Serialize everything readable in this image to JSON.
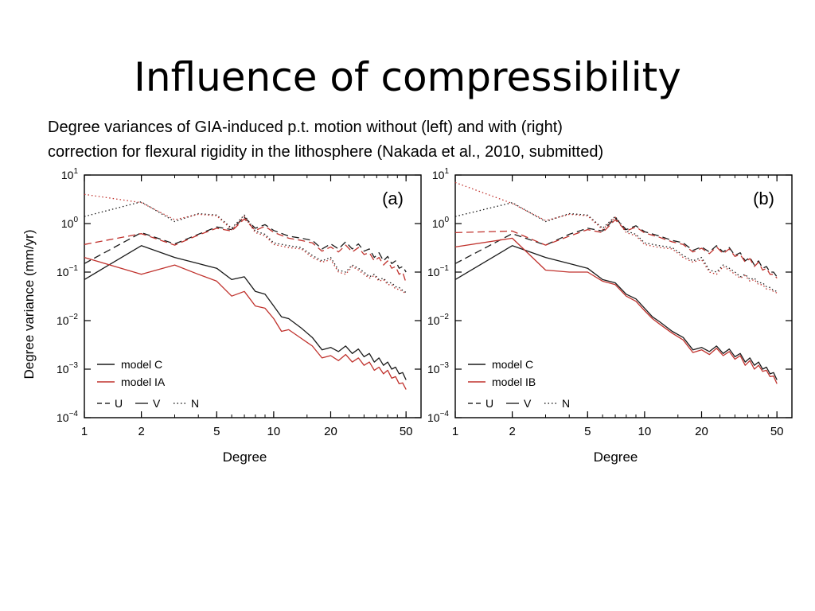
{
  "slide": {
    "title": "Influence of compressibility",
    "caption_line1": "Degree variances of GIA-induced p.t. motion without (left) and  with (right)",
    "caption_line2": "correction for flexural rigidity in the lithosphere (Nakada et al., 2010, submitted)"
  },
  "chart_data": [
    {
      "type": "line",
      "panel_label": "(a)",
      "xlabel": "Degree",
      "ylabel": "Degree variance (mm/yr)",
      "x_scale": "log",
      "y_scale": "log",
      "xlim": [
        1,
        60
      ],
      "ylim": [
        0.0001,
        10
      ],
      "x_ticks": [
        1,
        2,
        5,
        10,
        20,
        50
      ],
      "x_tick_labels": [
        "1",
        "2",
        "5",
        "10",
        "20",
        "50"
      ],
      "y_ticks": [
        10,
        1,
        0.1,
        0.01,
        0.001,
        0.0001
      ],
      "y_tick_labels": [
        {
          "base": "10",
          "exp": "1"
        },
        {
          "base": "10",
          "exp": "0"
        },
        {
          "base": "10",
          "exp": "−1"
        },
        {
          "base": "10",
          "exp": "−2"
        },
        {
          "base": "10",
          "exp": "−3"
        },
        {
          "base": "10",
          "exp": "−4"
        }
      ],
      "legend": {
        "position": "bottom-left",
        "models": [
          {
            "label": "model C",
            "color": "#1a1a1a"
          },
          {
            "label": "model IA",
            "color": "#c0322d"
          }
        ],
        "components": [
          {
            "label": "U",
            "dash": "dashed"
          },
          {
            "label": "V",
            "dash": "solid"
          },
          {
            "label": "N",
            "dash": "dotted"
          }
        ]
      },
      "series": [
        {
          "model": "model C",
          "component": "U",
          "color": "#1a1a1a",
          "dash": "dashed",
          "x": [
            1,
            2,
            3,
            4,
            5,
            6,
            7,
            8,
            9,
            10,
            12,
            14,
            16,
            18,
            20,
            22,
            24,
            26,
            28,
            30,
            32,
            34,
            36,
            38,
            40,
            42,
            44,
            46,
            48,
            50
          ],
          "y": [
            0.15,
            0.65,
            0.38,
            0.6,
            0.85,
            0.75,
            1.35,
            0.8,
            0.95,
            0.72,
            0.55,
            0.5,
            0.45,
            0.3,
            0.38,
            0.3,
            0.42,
            0.3,
            0.38,
            0.27,
            0.3,
            0.2,
            0.25,
            0.17,
            0.21,
            0.15,
            0.17,
            0.12,
            0.13,
            0.1
          ]
        },
        {
          "model": "model IA",
          "component": "U",
          "color": "#c0322d",
          "dash": "dashed",
          "x": [
            1,
            2,
            3,
            4,
            5,
            6,
            7,
            8,
            9,
            10,
            12,
            14,
            16,
            18,
            20,
            22,
            24,
            26,
            28,
            30,
            32,
            34,
            36,
            38,
            40,
            42,
            44,
            46,
            48,
            50
          ],
          "y": [
            0.37,
            0.62,
            0.36,
            0.58,
            0.8,
            0.7,
            1.25,
            0.72,
            0.88,
            0.66,
            0.5,
            0.45,
            0.4,
            0.27,
            0.33,
            0.26,
            0.36,
            0.26,
            0.32,
            0.23,
            0.25,
            0.17,
            0.2,
            0.14,
            0.17,
            0.12,
            0.13,
            0.09,
            0.1,
            0.06
          ]
        },
        {
          "model": "model C",
          "component": "V",
          "color": "#1a1a1a",
          "dash": "solid",
          "x": [
            1,
            2,
            3,
            4,
            5,
            6,
            7,
            8,
            9,
            10,
            11,
            12,
            14,
            16,
            18,
            20,
            22,
            24,
            26,
            28,
            30,
            32,
            34,
            36,
            38,
            40,
            42,
            44,
            46,
            48,
            50
          ],
          "y": [
            0.07,
            0.35,
            0.2,
            0.15,
            0.12,
            0.07,
            0.08,
            0.04,
            0.035,
            0.02,
            0.012,
            0.011,
            0.007,
            0.0045,
            0.0025,
            0.0028,
            0.0023,
            0.003,
            0.0021,
            0.0026,
            0.0018,
            0.0021,
            0.0014,
            0.0017,
            0.0012,
            0.0014,
            0.001,
            0.0011,
            0.0008,
            0.00085,
            0.0006
          ]
        },
        {
          "model": "model IA",
          "component": "V",
          "color": "#c0322d",
          "dash": "solid",
          "x": [
            1,
            2,
            3,
            4,
            5,
            6,
            7,
            8,
            9,
            10,
            11,
            12,
            14,
            16,
            18,
            20,
            22,
            24,
            26,
            28,
            30,
            32,
            34,
            36,
            38,
            40,
            42,
            44,
            46,
            48,
            50
          ],
          "y": [
            0.2,
            0.09,
            0.14,
            0.09,
            0.065,
            0.032,
            0.04,
            0.02,
            0.018,
            0.011,
            0.006,
            0.0065,
            0.0043,
            0.003,
            0.0017,
            0.0019,
            0.0015,
            0.002,
            0.0014,
            0.0017,
            0.0012,
            0.0014,
            0.00095,
            0.0011,
            0.0008,
            0.00095,
            0.00065,
            0.0007,
            0.0005,
            0.00052,
            0.00038
          ]
        },
        {
          "model": "model C",
          "component": "N",
          "color": "#1a1a1a",
          "dash": "dotted",
          "x": [
            1,
            2,
            3,
            4,
            5,
            6,
            7,
            8,
            9,
            10,
            12,
            14,
            16,
            18,
            20,
            22,
            24,
            26,
            28,
            30,
            32,
            34,
            36,
            38,
            40,
            42,
            44,
            46,
            48,
            50
          ],
          "y": [
            1.4,
            2.8,
            1.1,
            1.6,
            1.5,
            0.8,
            1.5,
            0.7,
            0.6,
            0.4,
            0.35,
            0.32,
            0.22,
            0.17,
            0.2,
            0.11,
            0.1,
            0.14,
            0.12,
            0.1,
            0.08,
            0.09,
            0.07,
            0.075,
            0.06,
            0.06,
            0.05,
            0.048,
            0.042,
            0.038
          ]
        },
        {
          "model": "model IA",
          "component": "N",
          "color": "#c0322d",
          "dash": "dotted",
          "x": [
            1,
            2,
            3,
            4,
            5,
            6,
            7,
            8,
            9,
            10,
            12,
            14,
            16,
            18,
            20,
            22,
            24,
            26,
            28,
            30,
            32,
            34,
            36,
            38,
            40,
            42,
            44,
            46,
            48,
            50
          ],
          "y": [
            4.0,
            2.7,
            1.2,
            1.55,
            1.45,
            0.75,
            1.4,
            0.65,
            0.56,
            0.37,
            0.32,
            0.3,
            0.2,
            0.16,
            0.18,
            0.1,
            0.09,
            0.13,
            0.11,
            0.09,
            0.075,
            0.085,
            0.065,
            0.07,
            0.055,
            0.055,
            0.045,
            0.044,
            0.04,
            0.036
          ]
        }
      ]
    },
    {
      "type": "line",
      "panel_label": "(b)",
      "xlabel": "Degree",
      "ylabel": "",
      "x_scale": "log",
      "y_scale": "log",
      "xlim": [
        1,
        60
      ],
      "ylim": [
        0.0001,
        10
      ],
      "x_ticks": [
        1,
        2,
        5,
        10,
        20,
        50
      ],
      "x_tick_labels": [
        "1",
        "2",
        "5",
        "10",
        "20",
        "50"
      ],
      "y_ticks": [
        10,
        1,
        0.1,
        0.01,
        0.001,
        0.0001
      ],
      "y_tick_labels": [
        {
          "base": "10",
          "exp": "1"
        },
        {
          "base": "10",
          "exp": "0"
        },
        {
          "base": "10",
          "exp": "−1"
        },
        {
          "base": "10",
          "exp": "−2"
        },
        {
          "base": "10",
          "exp": "−3"
        },
        {
          "base": "10",
          "exp": "−4"
        }
      ],
      "legend": {
        "position": "bottom-left",
        "models": [
          {
            "label": "model C",
            "color": "#1a1a1a"
          },
          {
            "label": "model IB",
            "color": "#c0322d"
          }
        ],
        "components": [
          {
            "label": "U",
            "dash": "dashed"
          },
          {
            "label": "V",
            "dash": "solid"
          },
          {
            "label": "N",
            "dash": "dotted"
          }
        ]
      },
      "series": [
        {
          "model": "model C",
          "component": "U",
          "color": "#1a1a1a",
          "dash": "dashed",
          "x": [
            1,
            2,
            3,
            4,
            5,
            6,
            7,
            8,
            9,
            10,
            12,
            14,
            16,
            18,
            20,
            22,
            24,
            26,
            28,
            30,
            32,
            34,
            36,
            38,
            40,
            42,
            44,
            46,
            48,
            50
          ],
          "y": [
            0.15,
            0.62,
            0.36,
            0.6,
            0.8,
            0.7,
            1.3,
            0.75,
            0.9,
            0.68,
            0.55,
            0.45,
            0.4,
            0.28,
            0.33,
            0.26,
            0.35,
            0.26,
            0.32,
            0.22,
            0.25,
            0.17,
            0.2,
            0.14,
            0.17,
            0.12,
            0.13,
            0.1,
            0.1,
            0.08
          ]
        },
        {
          "model": "model IB",
          "component": "U",
          "color": "#c0322d",
          "dash": "dashed",
          "x": [
            1,
            2,
            3,
            4,
            5,
            6,
            7,
            8,
            9,
            10,
            12,
            14,
            16,
            18,
            20,
            22,
            24,
            26,
            28,
            30,
            32,
            34,
            36,
            38,
            40,
            42,
            44,
            46,
            48,
            50
          ],
          "y": [
            0.65,
            0.7,
            0.36,
            0.55,
            0.75,
            0.65,
            1.2,
            0.7,
            0.85,
            0.64,
            0.52,
            0.42,
            0.37,
            0.26,
            0.31,
            0.24,
            0.33,
            0.24,
            0.3,
            0.21,
            0.23,
            0.16,
            0.19,
            0.13,
            0.16,
            0.11,
            0.12,
            0.09,
            0.09,
            0.075
          ]
        },
        {
          "model": "model C",
          "component": "V",
          "color": "#1a1a1a",
          "dash": "solid",
          "x": [
            1,
            2,
            3,
            4,
            5,
            6,
            7,
            8,
            9,
            10,
            11,
            12,
            14,
            16,
            18,
            20,
            22,
            24,
            26,
            28,
            30,
            32,
            34,
            36,
            38,
            40,
            42,
            44,
            46,
            48,
            50
          ],
          "y": [
            0.07,
            0.35,
            0.2,
            0.15,
            0.12,
            0.07,
            0.06,
            0.035,
            0.028,
            0.018,
            0.012,
            0.0095,
            0.006,
            0.0045,
            0.0025,
            0.0028,
            0.0023,
            0.003,
            0.0021,
            0.0026,
            0.0018,
            0.0021,
            0.0014,
            0.0017,
            0.0012,
            0.0014,
            0.001,
            0.0011,
            0.0008,
            0.00085,
            0.0006
          ]
        },
        {
          "model": "model IB",
          "component": "V",
          "color": "#c0322d",
          "dash": "solid",
          "x": [
            1,
            2,
            3,
            4,
            5,
            6,
            7,
            8,
            9,
            10,
            11,
            12,
            14,
            16,
            18,
            20,
            22,
            24,
            26,
            28,
            30,
            32,
            34,
            36,
            38,
            40,
            42,
            44,
            46,
            48,
            50
          ],
          "y": [
            0.33,
            0.5,
            0.11,
            0.1,
            0.1,
            0.065,
            0.055,
            0.032,
            0.025,
            0.016,
            0.011,
            0.0085,
            0.0055,
            0.004,
            0.0022,
            0.0025,
            0.002,
            0.0027,
            0.0019,
            0.0023,
            0.0016,
            0.0019,
            0.0012,
            0.0015,
            0.001,
            0.0012,
            0.0009,
            0.00095,
            0.0007,
            0.00072,
            0.0005
          ]
        },
        {
          "model": "model C",
          "component": "N",
          "color": "#1a1a1a",
          "dash": "dotted",
          "x": [
            1,
            2,
            3,
            4,
            5,
            6,
            7,
            8,
            9,
            10,
            12,
            14,
            16,
            18,
            20,
            22,
            24,
            26,
            28,
            30,
            32,
            34,
            36,
            38,
            40,
            42,
            44,
            46,
            48,
            50
          ],
          "y": [
            1.4,
            2.7,
            1.1,
            1.6,
            1.5,
            0.8,
            1.4,
            0.7,
            0.6,
            0.4,
            0.35,
            0.32,
            0.22,
            0.17,
            0.2,
            0.11,
            0.1,
            0.14,
            0.12,
            0.1,
            0.08,
            0.09,
            0.07,
            0.075,
            0.06,
            0.06,
            0.05,
            0.048,
            0.042,
            0.04
          ]
        },
        {
          "model": "model IB",
          "component": "N",
          "color": "#c0322d",
          "dash": "dotted",
          "x": [
            1,
            2,
            3,
            4,
            5,
            6,
            7,
            8,
            9,
            10,
            12,
            14,
            16,
            18,
            20,
            22,
            24,
            26,
            28,
            30,
            32,
            34,
            36,
            38,
            40,
            42,
            44,
            46,
            48,
            50
          ],
          "y": [
            7.0,
            2.6,
            1.15,
            1.55,
            1.45,
            0.75,
            1.35,
            0.65,
            0.56,
            0.37,
            0.32,
            0.3,
            0.2,
            0.16,
            0.18,
            0.1,
            0.09,
            0.13,
            0.11,
            0.09,
            0.075,
            0.085,
            0.065,
            0.07,
            0.055,
            0.055,
            0.045,
            0.044,
            0.04,
            0.037
          ]
        }
      ]
    }
  ]
}
